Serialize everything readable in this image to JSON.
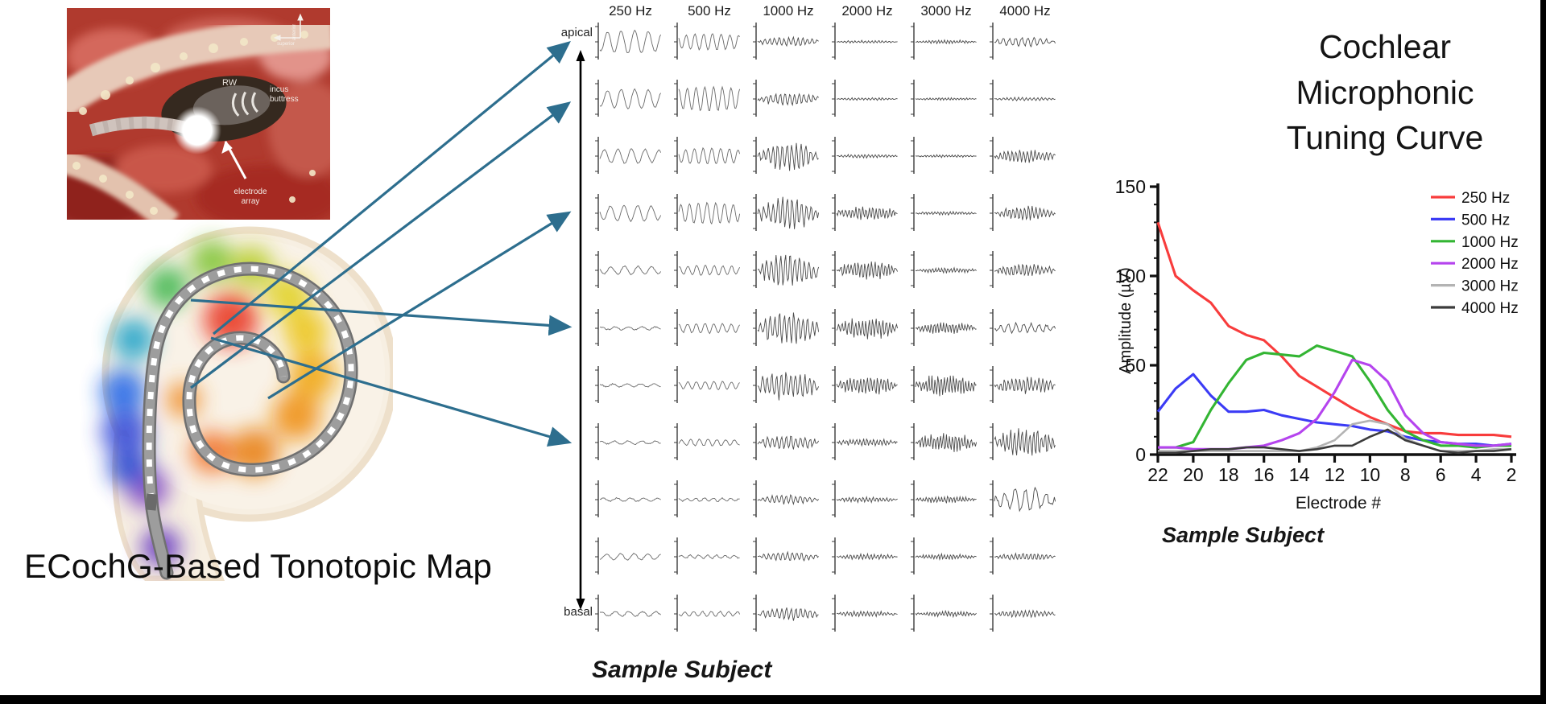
{
  "colors": {
    "arrow": "#2d6e8e",
    "trace_smooth": "#6a6a6a",
    "trace_dense": "#4a4a4a",
    "axis": "#111111"
  },
  "photo": {
    "labels": {
      "rw": "RW",
      "incus_line1": "incus",
      "incus_line2": "buttress",
      "electrode_line1": "electrode",
      "electrode_line2": "array",
      "axis_vertical": "anterior",
      "axis_horizontal": "superior"
    }
  },
  "map": {
    "caption": "ECochG-Based Tonotopic Map"
  },
  "grid": {
    "headers": [
      "250 Hz",
      "500 Hz",
      "1000 Hz",
      "2000 Hz",
      "3000 Hz",
      "4000 Hz"
    ],
    "apical": "apical",
    "basal": "basal",
    "caption": "Sample Subject",
    "cells": [
      [
        [
          14,
          4.5
        ],
        [
          10,
          7
        ],
        [
          5,
          13
        ],
        [
          1.5,
          18
        ],
        [
          2,
          20
        ],
        [
          5,
          10
        ]
      ],
      [
        [
          12,
          4.5
        ],
        [
          15,
          7
        ],
        [
          7,
          13
        ],
        [
          1.5,
          18
        ],
        [
          1.5,
          20
        ],
        [
          2,
          16
        ]
      ],
      [
        [
          9,
          4.5
        ],
        [
          10,
          7
        ],
        [
          15,
          13
        ],
        [
          2,
          18
        ],
        [
          1.5,
          20
        ],
        [
          7,
          16
        ]
      ],
      [
        [
          10,
          4.5
        ],
        [
          13,
          7
        ],
        [
          17,
          13
        ],
        [
          7,
          18
        ],
        [
          2,
          20
        ],
        [
          8,
          16
        ]
      ],
      [
        [
          5,
          4.5
        ],
        [
          6,
          7
        ],
        [
          17,
          13
        ],
        [
          10,
          18
        ],
        [
          3,
          20
        ],
        [
          7,
          16
        ]
      ],
      [
        [
          2,
          4.5
        ],
        [
          6,
          7
        ],
        [
          17,
          13
        ],
        [
          12,
          18
        ],
        [
          6,
          20
        ],
        [
          6,
          8
        ]
      ],
      [
        [
          2,
          4.5
        ],
        [
          5,
          7
        ],
        [
          16,
          13
        ],
        [
          10,
          18
        ],
        [
          12,
          20
        ],
        [
          9,
          16
        ]
      ],
      [
        [
          2,
          4.5
        ],
        [
          4,
          7
        ],
        [
          8,
          13
        ],
        [
          4,
          18
        ],
        [
          10,
          20
        ],
        [
          15,
          16
        ]
      ],
      [
        [
          2,
          4.5
        ],
        [
          2,
          7
        ],
        [
          5,
          13
        ],
        [
          3,
          18
        ],
        [
          4,
          20
        ],
        [
          13,
          6
        ]
      ],
      [
        [
          4,
          4.5
        ],
        [
          2,
          7
        ],
        [
          5,
          13
        ],
        [
          3,
          18
        ],
        [
          3,
          20
        ],
        [
          4,
          16
        ]
      ],
      [
        [
          3,
          4.5
        ],
        [
          3,
          7
        ],
        [
          7,
          13
        ],
        [
          3,
          18
        ],
        [
          3,
          20
        ],
        [
          4,
          16
        ]
      ]
    ]
  },
  "chart": {
    "title_lines": [
      "Cochlear",
      "Microphonic",
      "Tuning Curve"
    ],
    "caption": "Sample Subject"
  },
  "chart_data": {
    "type": "line",
    "title": "Cochlear Microphonic Tuning Curve",
    "xlabel": "Electrode #",
    "ylabel": "Amplitude (µV)",
    "x": [
      22,
      21,
      20,
      19,
      18,
      17,
      16,
      15,
      14,
      13,
      12,
      11,
      10,
      9,
      8,
      7,
      6,
      5,
      4,
      3,
      2
    ],
    "x_ticks": [
      22,
      20,
      18,
      16,
      14,
      12,
      10,
      8,
      6,
      4,
      2
    ],
    "x_reversed": true,
    "ylim": [
      0,
      150
    ],
    "y_major_ticks": [
      0,
      50,
      100,
      150
    ],
    "y_minor_step": 10,
    "grid_lines": false,
    "legend_position": "top-right",
    "series": [
      {
        "name": "250 Hz",
        "color": "#f83c3c",
        "values": [
          130,
          100,
          92,
          85,
          72,
          67,
          64,
          55,
          44,
          38,
          32,
          26,
          21,
          17,
          13,
          12,
          12,
          11,
          11,
          11,
          10
        ]
      },
      {
        "name": "500 Hz",
        "color": "#3b3bf5",
        "values": [
          24,
          37,
          45,
          33,
          24,
          24,
          25,
          22,
          20,
          18,
          17,
          16,
          14,
          13,
          10,
          8,
          7,
          6,
          6,
          5,
          6
        ]
      },
      {
        "name": "1000 Hz",
        "color": "#33b533",
        "values": [
          4,
          4,
          7,
          25,
          40,
          53,
          57,
          56,
          55,
          61,
          58,
          55,
          41,
          25,
          13,
          8,
          5,
          5,
          4,
          5,
          5
        ]
      },
      {
        "name": "2000 Hz",
        "color": "#b544ee",
        "values": [
          4,
          4,
          3,
          3,
          3,
          4,
          5,
          8,
          12,
          20,
          35,
          53,
          50,
          41,
          22,
          12,
          7,
          6,
          5,
          5,
          6
        ]
      },
      {
        "name": "3000 Hz",
        "color": "#b3b3b3",
        "values": [
          2,
          2,
          2,
          2,
          2,
          2,
          2,
          2,
          2,
          4,
          8,
          17,
          19,
          17,
          9,
          5,
          2,
          2,
          2,
          3,
          3
        ]
      },
      {
        "name": "4000 Hz",
        "color": "#3c3c3c",
        "values": [
          1,
          1,
          2,
          3,
          3,
          4,
          4,
          3,
          2,
          3,
          5,
          5,
          10,
          14,
          8,
          5,
          2,
          1,
          2,
          2,
          3
        ]
      }
    ]
  }
}
